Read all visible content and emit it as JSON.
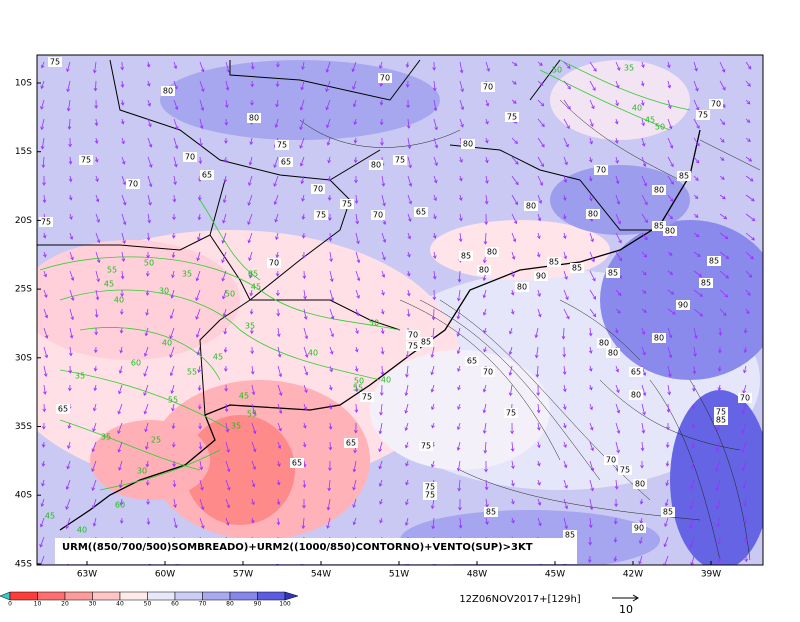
{
  "map": {
    "caption": "URM((850/700/500)SOMBREADO)+URM2((1000/850)CONTORNO)+VENTO(SUP)>3KT",
    "lat_labels": [
      "10S",
      "15S",
      "20S",
      "25S",
      "30S",
      "35S",
      "40S",
      "45S"
    ],
    "lon_labels": [
      "63W",
      "60W",
      "57W",
      "54W",
      "51W",
      "48W",
      "45W",
      "42W",
      "39W"
    ],
    "black_labels": [
      "75",
      "70",
      "80",
      "70",
      "80",
      "75",
      "70",
      "65",
      "75",
      "80",
      "75",
      "80",
      "75",
      "70",
      "75",
      "70",
      "65",
      "70",
      "70",
      "75",
      "80",
      "85",
      "75",
      "70",
      "65",
      "80",
      "80",
      "85",
      "80",
      "75",
      "85",
      "80",
      "80",
      "90",
      "85",
      "85",
      "85",
      "80",
      "85",
      "85",
      "90",
      "80",
      "80",
      "80",
      "65",
      "70",
      "70",
      "75",
      "85",
      "65",
      "80",
      "75",
      "75",
      "65",
      "75",
      "65",
      "70",
      "75",
      "80",
      "75",
      "75",
      "85",
      "90",
      "85",
      "85",
      "70",
      "75",
      "85",
      "65",
      "70"
    ],
    "green_labels": [
      "50",
      "35",
      "40",
      "45",
      "50",
      "65",
      "35",
      "45",
      "50",
      "55",
      "50",
      "45",
      "30",
      "40",
      "35",
      "50",
      "40",
      "40",
      "60",
      "55",
      "45",
      "50",
      "55",
      "40",
      "35",
      "55",
      "45",
      "55",
      "35",
      "25",
      "35",
      "30",
      "60",
      "45",
      "40"
    ]
  },
  "colorbar": {
    "ticks": [
      0,
      10,
      20,
      30,
      40,
      50,
      60,
      70,
      80,
      90,
      100
    ],
    "colors": [
      "#ff3b3b",
      "#ff6e6e",
      "#ff9a9a",
      "#ffc4c4",
      "#ffeaea",
      "#e8e8fb",
      "#ccccf6",
      "#a9a9f0",
      "#8585ea",
      "#5c5ce3"
    ]
  },
  "timestamp": "12Z06NOV2017+[129h]",
  "vector_ref": "10"
}
